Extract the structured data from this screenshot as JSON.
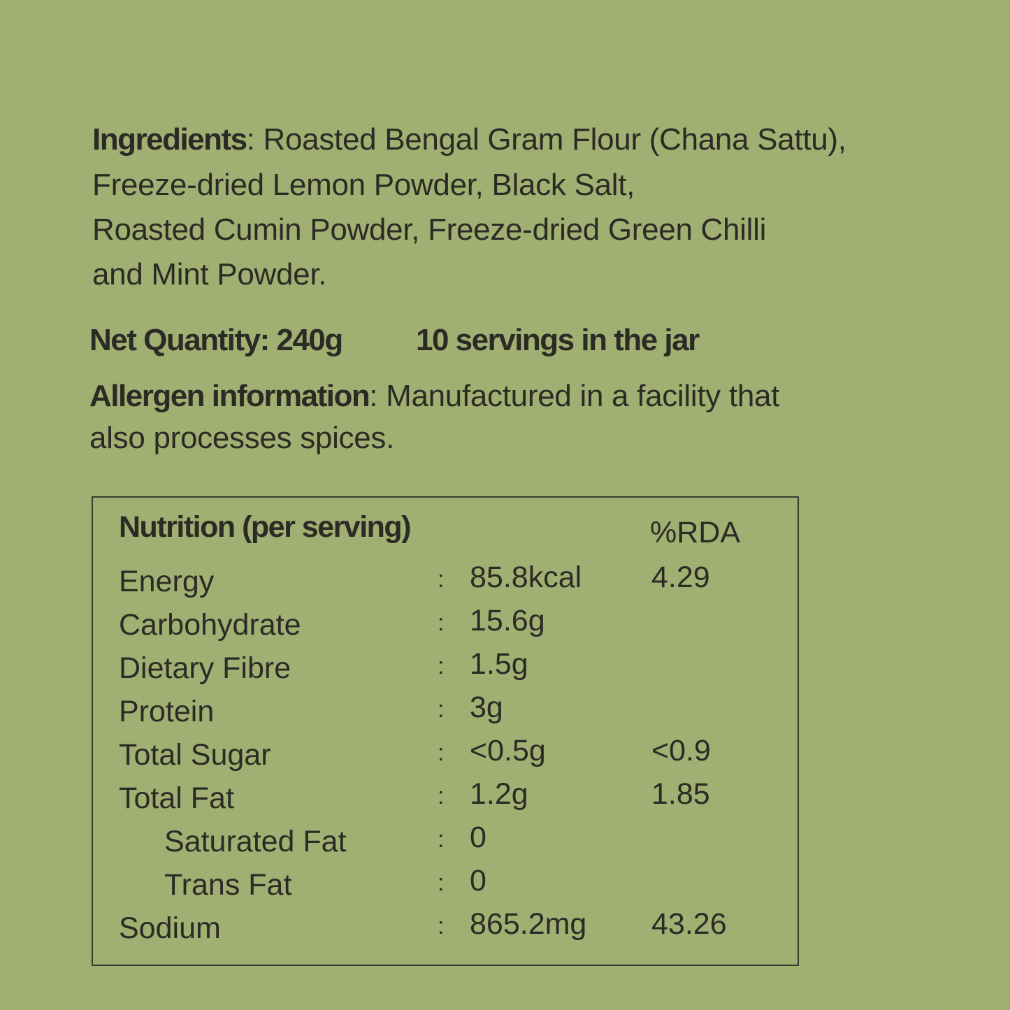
{
  "ingredients": {
    "label": "Ingredients",
    "lines": [
      ": Roasted Bengal Gram Flour (Chana Sattu),",
      "Freeze-dried Lemon Powder, Black Salt,",
      "Roasted Cumin Powder,  Freeze-dried Green Chilli",
      "and Mint Powder."
    ]
  },
  "net_quantity": "Net Quantity: 240g",
  "servings": "10 servings in the jar",
  "allergen": {
    "label": "Allergen information",
    "lines": [
      ": Manufactured in a facility that",
      "also processes spices."
    ]
  },
  "nutrition": {
    "title": "Nutrition (per serving)",
    "rda_header": "%RDA",
    "rows": [
      {
        "name": "Energy",
        "value": "85.8kcal",
        "rda": "4.29"
      },
      {
        "name": "Carbohydrate",
        "value": "15.6g",
        "rda": ""
      },
      {
        "name": "Dietary Fibre",
        "value": "1.5g",
        "rda": ""
      },
      {
        "name": "Protein",
        "value": "3g",
        "rda": ""
      },
      {
        "name": "Total Sugar",
        "value": "<0.5g",
        "rda": "<0.9"
      },
      {
        "name": "Total Fat",
        "value": "1.2g",
        "rda": "1.85"
      },
      {
        "name": "Saturated Fat",
        "value": "0",
        "rda": ""
      },
      {
        "name": "Trans Fat",
        "value": "0",
        "rda": ""
      },
      {
        "name": "Sodium",
        "value": "865.2mg",
        "rda": "43.26"
      }
    ]
  },
  "colors": {
    "background": "#a0af70",
    "text": "#2b2b25"
  }
}
